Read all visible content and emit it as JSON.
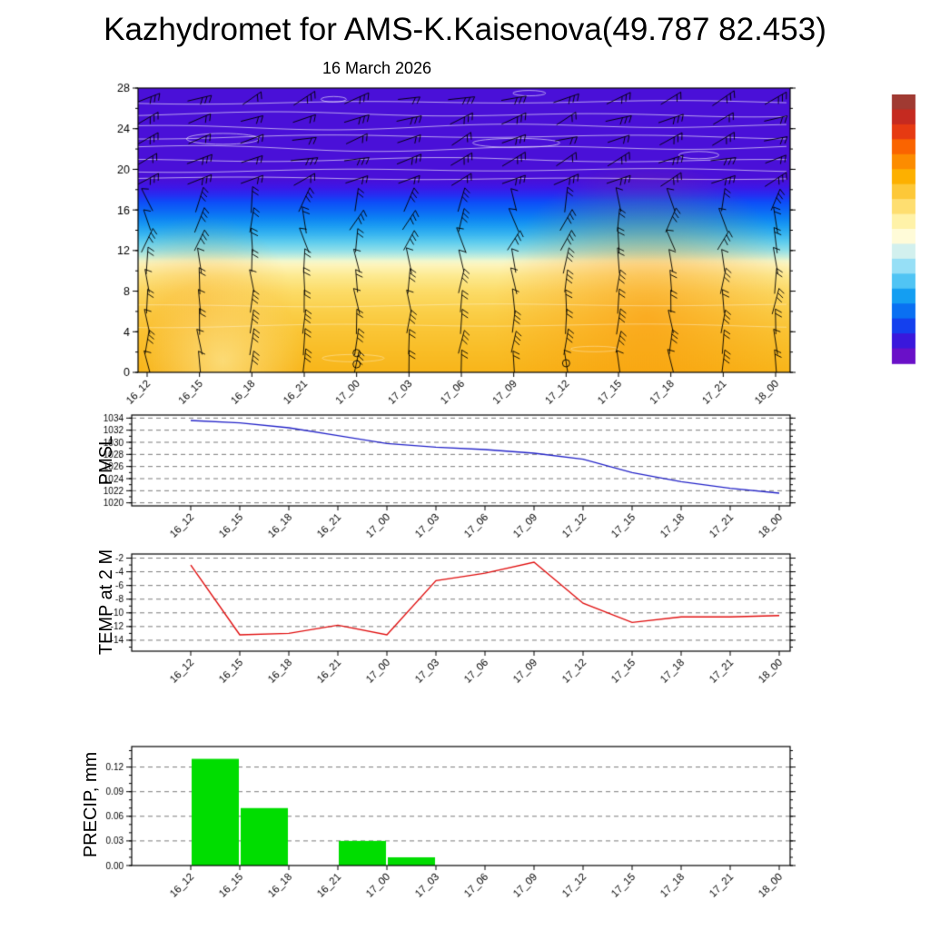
{
  "title": "Kazhydromet for AMS-K.Kaisenova(49.787 82.453)",
  "subtitle": "16 March 2026",
  "time_labels": [
    "16_12",
    "16_15",
    "16_18",
    "16_21",
    "17_00",
    "17_03",
    "17_06",
    "17_09",
    "17_12",
    "17_15",
    "17_18",
    "17_21",
    "18_00"
  ],
  "chart_data": [
    {
      "id": "vertical-cross-section",
      "type": "heatmap",
      "title": "16 March 2026",
      "description": "Time-height cross-section: shaded temperature field with black wind barbs (13 forecast times x 14 levels) and thin white contour lines",
      "ylim": [
        0,
        28
      ],
      "y_ticks": [
        0,
        4,
        8,
        12,
        16,
        20,
        24,
        28
      ],
      "y_tick_labels": [
        "0",
        "4",
        "8",
        "12",
        "16",
        "20",
        "24",
        "28"
      ],
      "y_minor": 2,
      "color_bands": [
        {
          "y": 28.0,
          "c": "#4a10d8"
        },
        {
          "y": 19.0,
          "c": "#4a10d8"
        },
        {
          "y": 18.2,
          "c": "#3c17e8"
        },
        {
          "y": 17.4,
          "c": "#2430f2"
        },
        {
          "y": 16.8,
          "c": "#0e4cf8"
        },
        {
          "y": 16.0,
          "c": "#0c66f6"
        },
        {
          "y": 15.2,
          "c": "#0d82f4"
        },
        {
          "y": 14.4,
          "c": "#1c9df2"
        },
        {
          "y": 13.6,
          "c": "#38b5f0"
        },
        {
          "y": 12.8,
          "c": "#60cdee"
        },
        {
          "y": 12.0,
          "c": "#90dfe9"
        },
        {
          "y": 11.4,
          "c": "#c4eedd"
        },
        {
          "y": 11.0,
          "c": "#eff8cf"
        },
        {
          "y": 10.6,
          "c": "#fdf5bd"
        },
        {
          "y": 9.5,
          "c": "#fdea90"
        },
        {
          "y": 8.0,
          "c": "#fcdc68"
        },
        {
          "y": 6.0,
          "c": "#fbcf49"
        },
        {
          "y": 4.0,
          "c": "#fac535"
        },
        {
          "y": 2.0,
          "c": "#f9bd26"
        },
        {
          "y": 0.0,
          "c": "#f8b51a"
        }
      ],
      "colorbar_colors": [
        "#a03a32",
        "#c52a20",
        "#e63a12",
        "#fa6400",
        "#fc8c00",
        "#fdb000",
        "#fdc838",
        "#fede70",
        "#fff2a8",
        "#fffbd8",
        "#d2f0ee",
        "#96dff6",
        "#50c4f4",
        "#149ef2",
        "#0a70f2",
        "#1440ee",
        "#3a18dc",
        "#6a10c8"
      ],
      "barb_grid": {
        "cols": 13,
        "rows": 14,
        "y_start": 1,
        "y_step": 2,
        "color": "#000000"
      },
      "contour_color": "#ffffff",
      "calm_markers": [
        {
          "col": 4,
          "y": 1.9
        },
        {
          "col": 4,
          "y": 0.8
        },
        {
          "col": 8,
          "y": 0.9
        }
      ]
    },
    {
      "id": "pmsl",
      "type": "line",
      "ylabel": "PMSL",
      "line_color": "#2424c8",
      "ylim": [
        1019.5,
        1034.5
      ],
      "y_ticks": [
        1020,
        1022,
        1024,
        1026,
        1028,
        1030,
        1032,
        1034
      ],
      "y_tick_labels": [
        "1020",
        "1022",
        "1024",
        "1026",
        "1028",
        "1030",
        "1032",
        "1034"
      ],
      "y_minor": 1,
      "values": [
        1033.6,
        1033.2,
        1032.4,
        1031.1,
        1029.8,
        1029.2,
        1028.8,
        1028.2,
        1027.2,
        1025.0,
        1023.5,
        1022.4,
        1021.6
      ]
    },
    {
      "id": "temp2m",
      "type": "line",
      "ylabel": "TEMP at 2 M",
      "line_color": "#e01010",
      "ylim": [
        -15.6,
        -1.4
      ],
      "y_ticks": [
        -14,
        -12,
        -10,
        -8,
        -6,
        -4,
        -2
      ],
      "y_tick_labels": [
        "-14",
        "-12",
        "-10",
        "-8",
        "-6",
        "-4",
        "-2"
      ],
      "y_minor": 1,
      "values": [
        -3.0,
        -13.2,
        -13.0,
        -11.8,
        -13.2,
        -5.3,
        -4.2,
        -2.6,
        -8.6,
        -11.4,
        -10.6,
        -10.6,
        -10.4
      ]
    },
    {
      "id": "precip",
      "type": "bar",
      "ylabel": "PRECIP, mm",
      "bar_color": "#00dd00",
      "ylim": [
        0,
        0.145
      ],
      "y_ticks": [
        0,
        0.03,
        0.06,
        0.09,
        0.12
      ],
      "y_tick_labels": [
        "0.00",
        "0.03",
        "0.06",
        "0.09",
        "0.12"
      ],
      "y_minor": 0.01,
      "values": [
        0,
        0.13,
        0.07,
        0,
        0.03,
        0.01,
        0,
        0,
        0,
        0,
        0,
        0,
        0
      ],
      "bar_note": "bars span the 3-hour interval ending at the labeled time"
    }
  ]
}
